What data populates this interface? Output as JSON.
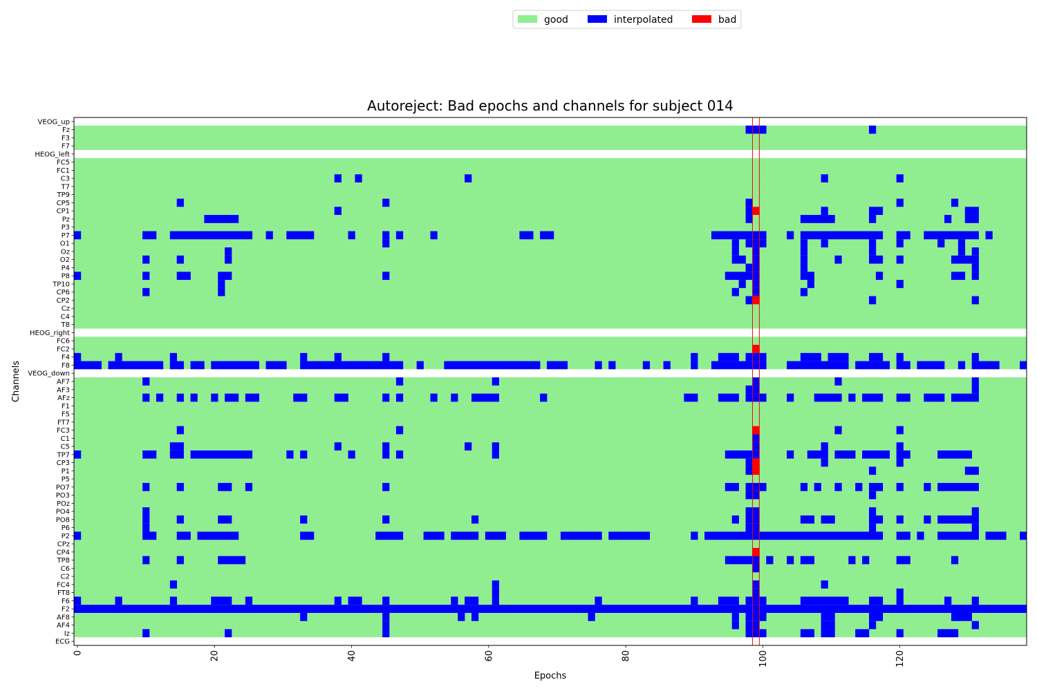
{
  "chart_data": {
    "type": "heatmap",
    "title": "Autoreject: Bad epochs and channels for subject 014",
    "xlabel": "Epochs",
    "ylabel": "Channels",
    "n_epochs": 139,
    "xlim": [
      0,
      139
    ],
    "x_ticks": [
      0,
      20,
      40,
      60,
      80,
      100,
      120
    ],
    "channels": [
      "VEOG_up",
      "Fz",
      "F3",
      "F7",
      "HEOG_left",
      "FC5",
      "FC1",
      "C3",
      "T7",
      "TP9",
      "CP5",
      "CP1",
      "Pz",
      "P3",
      "P7",
      "O1",
      "Oz",
      "O2",
      "P4",
      "P8",
      "TP10",
      "CP6",
      "CP2",
      "Cz",
      "C4",
      "T8",
      "HEOG_right",
      "FC6",
      "FC2",
      "F4",
      "F8",
      "VEOG_down",
      "AF7",
      "AF3",
      "AFz",
      "F1",
      "F5",
      "FT7",
      "FC3",
      "C1",
      "C5",
      "TP7",
      "CP3",
      "P1",
      "P5",
      "PO7",
      "PO3",
      "POz",
      "PO4",
      "PO8",
      "P6",
      "P2",
      "CPz",
      "CP4",
      "TP8",
      "C6",
      "C2",
      "FC4",
      "FT8",
      "F6",
      "F2",
      "AF8",
      "AF4",
      "Iz",
      "ECG"
    ],
    "excluded_channels": [
      "VEOG_up",
      "HEOG_left",
      "HEOG_right",
      "VEOG_down",
      "ECG"
    ],
    "legend": [
      {
        "label": "good",
        "color": "#90ee90"
      },
      {
        "label": "interpolated",
        "color": "#0000ff"
      },
      {
        "label": "bad",
        "color": "#ff0000"
      }
    ],
    "legend_position": "top-center",
    "excluded_color": "#ffffff",
    "bad_epochs": [
      99
    ],
    "bad_epoch_line_color": "#ff0000",
    "interpolated": {
      "Fz": [
        [
          98,
          100
        ],
        [
          116,
          116
        ]
      ],
      "C3": [
        [
          38,
          38
        ],
        [
          41,
          41
        ],
        [
          57,
          57
        ],
        [
          109,
          109
        ],
        [
          120,
          120
        ]
      ],
      "CP5": [
        [
          15,
          15
        ],
        [
          45,
          45
        ],
        [
          98,
          98
        ],
        [
          120,
          120
        ],
        [
          128,
          128
        ]
      ],
      "CP1": [
        [
          38,
          38
        ],
        [
          98,
          98
        ],
        [
          109,
          109
        ],
        [
          116,
          117
        ],
        [
          130,
          131
        ]
      ],
      "Pz": [
        [
          19,
          23
        ],
        [
          98,
          98
        ],
        [
          106,
          110
        ],
        [
          116,
          116
        ],
        [
          127,
          127
        ],
        [
          130,
          131
        ]
      ],
      "P7": [
        [
          0,
          0
        ],
        [
          10,
          11
        ],
        [
          14,
          25
        ],
        [
          28,
          28
        ],
        [
          31,
          34
        ],
        [
          40,
          40
        ],
        [
          45,
          45
        ],
        [
          47,
          47
        ],
        [
          52,
          52
        ],
        [
          65,
          66
        ],
        [
          68,
          69
        ],
        [
          93,
          100
        ],
        [
          104,
          104
        ],
        [
          106,
          117
        ],
        [
          120,
          121
        ],
        [
          124,
          131
        ],
        [
          133,
          133
        ]
      ],
      "O1": [
        [
          45,
          45
        ],
        [
          96,
          96
        ],
        [
          98,
          100
        ],
        [
          106,
          106
        ],
        [
          109,
          109
        ],
        [
          116,
          116
        ],
        [
          120,
          120
        ],
        [
          126,
          126
        ],
        [
          129,
          129
        ]
      ],
      "Oz": [
        [
          22,
          22
        ],
        [
          96,
          96
        ],
        [
          99,
          99
        ],
        [
          106,
          106
        ],
        [
          116,
          116
        ],
        [
          129,
          129
        ],
        [
          131,
          131
        ]
      ],
      "O2": [
        [
          10,
          10
        ],
        [
          15,
          15
        ],
        [
          22,
          22
        ],
        [
          96,
          97
        ],
        [
          99,
          99
        ],
        [
          106,
          106
        ],
        [
          111,
          111
        ],
        [
          116,
          117
        ],
        [
          120,
          120
        ],
        [
          128,
          131
        ]
      ],
      "P4": [
        [
          98,
          99
        ],
        [
          106,
          106
        ],
        [
          131,
          131
        ]
      ],
      "P8": [
        [
          0,
          0
        ],
        [
          10,
          10
        ],
        [
          15,
          16
        ],
        [
          21,
          22
        ],
        [
          45,
          45
        ],
        [
          95,
          98
        ],
        [
          99,
          99
        ],
        [
          106,
          107
        ],
        [
          117,
          117
        ],
        [
          128,
          129
        ],
        [
          131,
          131
        ]
      ],
      "TP10": [
        [
          21,
          21
        ],
        [
          97,
          97
        ],
        [
          99,
          99
        ],
        [
          107,
          107
        ],
        [
          120,
          120
        ]
      ],
      "CP6": [
        [
          10,
          10
        ],
        [
          21,
          21
        ],
        [
          96,
          96
        ],
        [
          99,
          99
        ],
        [
          106,
          106
        ]
      ],
      "CP2": [
        [
          98,
          98
        ],
        [
          116,
          116
        ],
        [
          131,
          131
        ]
      ],
      "FC2": [
        [
          99,
          99
        ]
      ],
      "F4": [
        [
          0,
          0
        ],
        [
          6,
          6
        ],
        [
          14,
          14
        ],
        [
          33,
          33
        ],
        [
          38,
          38
        ],
        [
          45,
          45
        ],
        [
          90,
          90
        ],
        [
          94,
          96
        ],
        [
          98,
          100
        ],
        [
          106,
          108
        ],
        [
          110,
          112
        ],
        [
          116,
          117
        ],
        [
          120,
          120
        ],
        [
          131,
          131
        ]
      ],
      "F8": [
        [
          0,
          3
        ],
        [
          5,
          12
        ],
        [
          14,
          15
        ],
        [
          17,
          18
        ],
        [
          20,
          26
        ],
        [
          28,
          30
        ],
        [
          33,
          47
        ],
        [
          50,
          50
        ],
        [
          54,
          67
        ],
        [
          69,
          71
        ],
        [
          76,
          76
        ],
        [
          78,
          78
        ],
        [
          83,
          83
        ],
        [
          86,
          86
        ],
        [
          90,
          90
        ],
        [
          93,
          100
        ],
        [
          104,
          105
        ],
        [
          106,
          108
        ],
        [
          109,
          112
        ],
        [
          114,
          116
        ],
        [
          117,
          118
        ],
        [
          120,
          121
        ],
        [
          123,
          126
        ],
        [
          129,
          129
        ],
        [
          131,
          134
        ],
        [
          138,
          138
        ]
      ],
      "AF7": [
        [
          10,
          10
        ],
        [
          47,
          47
        ],
        [
          61,
          61
        ],
        [
          99,
          99
        ],
        [
          111,
          111
        ],
        [
          131,
          131
        ]
      ],
      "AF3": [
        [
          98,
          99
        ],
        [
          131,
          131
        ]
      ],
      "AFz": [
        [
          10,
          10
        ],
        [
          12,
          12
        ],
        [
          15,
          15
        ],
        [
          17,
          17
        ],
        [
          20,
          20
        ],
        [
          22,
          23
        ],
        [
          25,
          26
        ],
        [
          32,
          33
        ],
        [
          38,
          39
        ],
        [
          45,
          45
        ],
        [
          47,
          47
        ],
        [
          52,
          52
        ],
        [
          55,
          55
        ],
        [
          58,
          61
        ],
        [
          68,
          68
        ],
        [
          89,
          90
        ],
        [
          94,
          96
        ],
        [
          98,
          100
        ],
        [
          104,
          104
        ],
        [
          108,
          111
        ],
        [
          113,
          113
        ],
        [
          115,
          117
        ],
        [
          120,
          121
        ],
        [
          124,
          126
        ],
        [
          128,
          130
        ],
        [
          131,
          131
        ]
      ],
      "FC3": [
        [
          15,
          15
        ],
        [
          47,
          47
        ],
        [
          111,
          111
        ],
        [
          120,
          120
        ]
      ],
      "C1": [
        [
          99,
          99
        ]
      ],
      "C5": [
        [
          14,
          15
        ],
        [
          38,
          38
        ],
        [
          45,
          45
        ],
        [
          57,
          57
        ],
        [
          61,
          61
        ],
        [
          99,
          99
        ],
        [
          109,
          109
        ],
        [
          120,
          120
        ]
      ],
      "TP7": [
        [
          0,
          0
        ],
        [
          10,
          11
        ],
        [
          14,
          15
        ],
        [
          17,
          25
        ],
        [
          31,
          31
        ],
        [
          33,
          33
        ],
        [
          40,
          40
        ],
        [
          45,
          45
        ],
        [
          47,
          47
        ],
        [
          61,
          61
        ],
        [
          95,
          98
        ],
        [
          99,
          99
        ],
        [
          104,
          104
        ],
        [
          107,
          108
        ],
        [
          109,
          109
        ],
        [
          111,
          113
        ],
        [
          115,
          118
        ],
        [
          120,
          121
        ],
        [
          126,
          130
        ]
      ],
      "CP3": [
        [
          98,
          98
        ],
        [
          109,
          109
        ],
        [
          120,
          120
        ]
      ],
      "P1": [
        [
          98,
          98
        ],
        [
          116,
          116
        ],
        [
          130,
          131
        ]
      ],
      "PO7": [
        [
          10,
          10
        ],
        [
          15,
          15
        ],
        [
          21,
          22
        ],
        [
          25,
          25
        ],
        [
          45,
          45
        ],
        [
          95,
          96
        ],
        [
          98,
          100
        ],
        [
          106,
          106
        ],
        [
          108,
          108
        ],
        [
          111,
          111
        ],
        [
          114,
          114
        ],
        [
          116,
          117
        ],
        [
          120,
          120
        ],
        [
          124,
          124
        ],
        [
          126,
          131
        ]
      ],
      "PO3": [
        [
          98,
          99
        ],
        [
          116,
          116
        ]
      ],
      "PO4": [
        [
          10,
          10
        ],
        [
          98,
          99
        ],
        [
          116,
          116
        ],
        [
          131,
          131
        ]
      ],
      "PO8": [
        [
          10,
          10
        ],
        [
          15,
          15
        ],
        [
          21,
          22
        ],
        [
          33,
          33
        ],
        [
          45,
          45
        ],
        [
          58,
          58
        ],
        [
          96,
          96
        ],
        [
          98,
          99
        ],
        [
          106,
          107
        ],
        [
          109,
          110
        ],
        [
          116,
          117
        ],
        [
          120,
          120
        ],
        [
          124,
          124
        ],
        [
          126,
          131
        ]
      ],
      "P6": [
        [
          10,
          10
        ],
        [
          98,
          99
        ],
        [
          116,
          116
        ],
        [
          131,
          131
        ]
      ],
      "P2": [
        [
          0,
          0
        ],
        [
          10,
          11
        ],
        [
          15,
          16
        ],
        [
          18,
          23
        ],
        [
          33,
          34
        ],
        [
          44,
          47
        ],
        [
          51,
          53
        ],
        [
          55,
          58
        ],
        [
          60,
          62
        ],
        [
          65,
          68
        ],
        [
          71,
          76
        ],
        [
          78,
          83
        ],
        [
          90,
          90
        ],
        [
          92,
          117
        ],
        [
          120,
          121
        ],
        [
          123,
          123
        ],
        [
          126,
          131
        ],
        [
          133,
          135
        ],
        [
          138,
          138
        ]
      ],
      "TP8": [
        [
          10,
          10
        ],
        [
          15,
          15
        ],
        [
          21,
          24
        ],
        [
          95,
          98
        ],
        [
          99,
          99
        ],
        [
          101,
          101
        ],
        [
          104,
          104
        ],
        [
          106,
          107
        ],
        [
          113,
          113
        ],
        [
          115,
          115
        ],
        [
          120,
          121
        ],
        [
          128,
          128
        ]
      ],
      "C6": [
        [
          99,
          99
        ]
      ],
      "FC4": [
        [
          14,
          14
        ],
        [
          61,
          61
        ],
        [
          99,
          99
        ],
        [
          109,
          109
        ]
      ],
      "FT8": [
        [
          61,
          61
        ],
        [
          99,
          99
        ],
        [
          120,
          120
        ]
      ],
      "F6": [
        [
          0,
          0
        ],
        [
          6,
          6
        ],
        [
          14,
          14
        ],
        [
          20,
          22
        ],
        [
          25,
          25
        ],
        [
          38,
          38
        ],
        [
          40,
          41
        ],
        [
          45,
          45
        ],
        [
          55,
          55
        ],
        [
          57,
          58
        ],
        [
          61,
          61
        ],
        [
          76,
          76
        ],
        [
          90,
          90
        ],
        [
          94,
          96
        ],
        [
          98,
          100
        ],
        [
          106,
          112
        ],
        [
          116,
          117
        ],
        [
          120,
          120
        ],
        [
          127,
          127
        ],
        [
          131,
          131
        ]
      ],
      "F2": [
        [
          0,
          138
        ]
      ],
      "AF8": [
        [
          33,
          33
        ],
        [
          45,
          45
        ],
        [
          56,
          56
        ],
        [
          58,
          58
        ],
        [
          75,
          75
        ],
        [
          96,
          96
        ],
        [
          98,
          100
        ],
        [
          109,
          110
        ],
        [
          116,
          117
        ],
        [
          128,
          130
        ]
      ],
      "AF4": [
        [
          45,
          45
        ],
        [
          96,
          96
        ],
        [
          98,
          99
        ],
        [
          109,
          110
        ],
        [
          116,
          116
        ],
        [
          131,
          131
        ]
      ],
      "Iz": [
        [
          10,
          10
        ],
        [
          22,
          22
        ],
        [
          45,
          45
        ],
        [
          98,
          99
        ],
        [
          100,
          100
        ],
        [
          106,
          107
        ],
        [
          109,
          110
        ],
        [
          114,
          115
        ],
        [
          120,
          120
        ],
        [
          126,
          128
        ]
      ]
    },
    "bad": {
      "CP1": [
        [
          99,
          99
        ]
      ],
      "CP2": [
        [
          99,
          99
        ]
      ],
      "FC2": [
        [
          99,
          99
        ]
      ],
      "FC3": [
        [
          99,
          99
        ]
      ],
      "CP3": [
        [
          99,
          99
        ]
      ],
      "P1": [
        [
          99,
          99
        ]
      ],
      "CP4": [
        [
          99,
          99
        ]
      ]
    }
  }
}
